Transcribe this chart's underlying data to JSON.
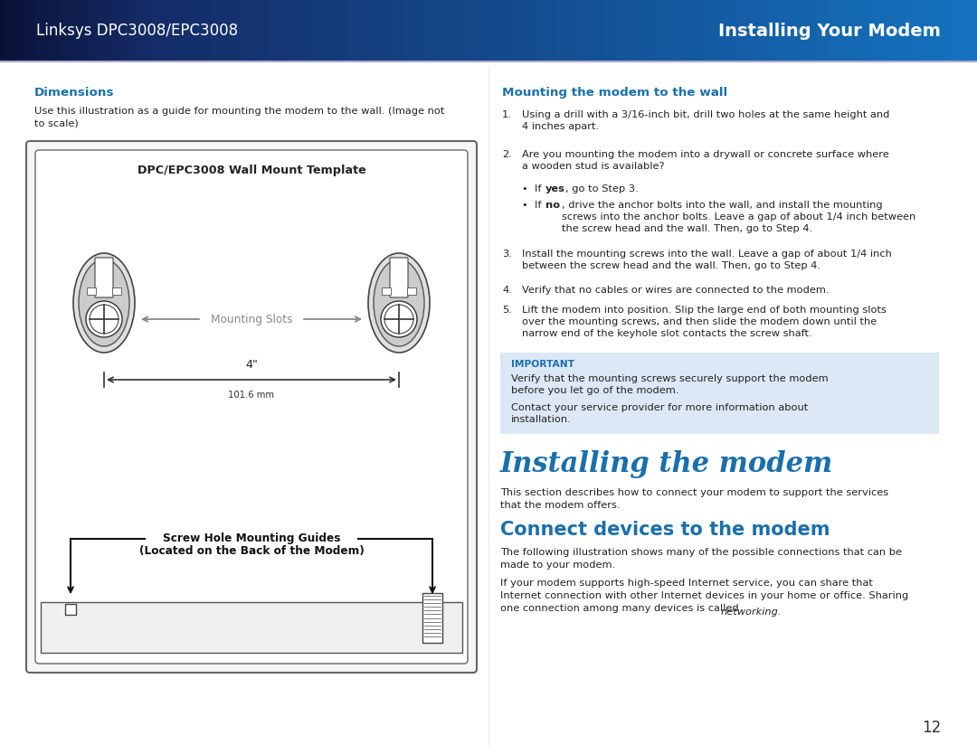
{
  "header_left_text": "Linksys DPC3008/EPC3008",
  "header_right_text": "Installing Your Modem",
  "header_text_color": "#ffffff",
  "header_text_size": 12,
  "page_bg": "#ffffff",
  "dimensions_title": "Dimensions",
  "dimensions_title_color": "#1a6fad",
  "dimensions_body": "Use this illustration as a guide for mounting the modem to the wall. (Image not\nto scale)",
  "diagram_title": "DPC/EPC3008 Wall Mount Template",
  "mounting_slots_label": "Mounting Slots",
  "dimension_label1": "4\"",
  "dimension_label2": "101.6 mm",
  "screw_label1": "Screw Hole Mounting Guides",
  "screw_label2": "(Located on the Back of the Modem)",
  "right_heading": "Mounting the modem to the wall",
  "right_heading_color": "#1a6fad",
  "step1": "Using a drill with a 3/16-inch bit, drill two holes at the same height and\n4 inches apart.",
  "step2": "Are you mounting the modem into a drywall or concrete surface where\na wooden stud is available?",
  "bullet_yes_pre": "If ",
  "bullet_yes_bold": "yes",
  "bullet_yes_post": ", go to Step 3.",
  "bullet_no_pre": "If ",
  "bullet_no_bold": "no",
  "bullet_no_post": ", drive the anchor bolts into the wall, and install the mounting\nscrews into the anchor bolts. Leave a gap of about 1/4 inch between\nthe screw head and the wall. Then, go to Step 4.",
  "step3": "Install the mounting screws into the wall. Leave a gap of about 1/4 inch\nbetween the screw head and the wall. Then, go to Step 4.",
  "step4": "Verify that no cables or wires are connected to the modem.",
  "step5": "Lift the modem into position. Slip the large end of both mounting slots\nover the mounting screws, and then slide the modem down until the\nnarrow end of the keyhole slot contacts the screw shaft.",
  "important_bg": "#dce8f5",
  "important_label": "IMPORTANT",
  "important_label_color": "#1a6fad",
  "important_text1": "Verify that the mounting screws securely support the modem\nbefore you let go of the modem.",
  "important_text2": "Contact your service provider for more information about\ninstallation.",
  "section_title": "Installing the modem",
  "section_title_color": "#1a6fad",
  "section_body": "This section describes how to connect your modem to support the services\nthat the modem offers.",
  "subsection_title": "Connect devices to the modem",
  "subsection_title_color": "#1a6fad",
  "subsection_body1": "The following illustration shows many of the possible connections that can be\nmade to your modem.",
  "subsection_body2_main": "If your modem supports high-speed Internet service, you can share that\nInternet connection with other Internet devices in your home or office. Sharing\none connection among many devices is called ",
  "subsection_body2_italic": "networking.",
  "page_number": "12",
  "body_text_color": "#222222",
  "body_font_size": 8.2,
  "diagram_border_color": "#555555"
}
